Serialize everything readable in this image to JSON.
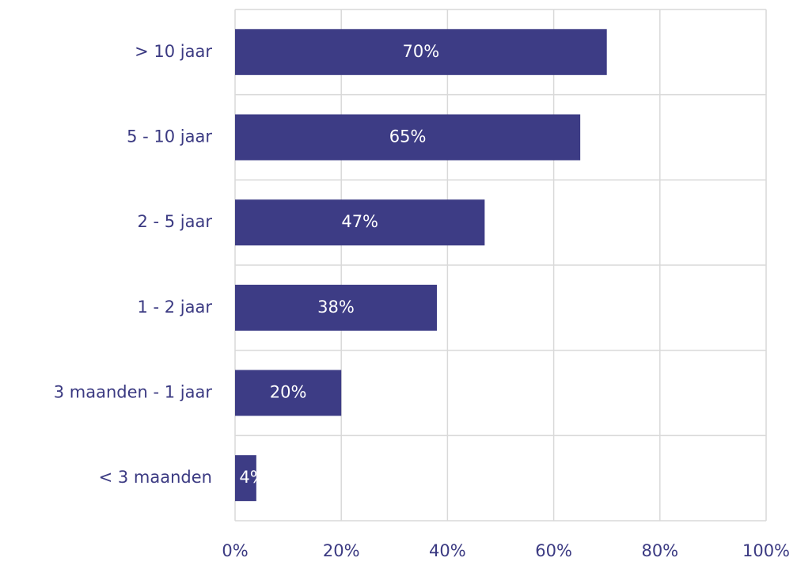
{
  "chart_data": {
    "type": "bar",
    "orientation": "horizontal",
    "categories": [
      "> 10 jaar",
      "5 - 10 jaar",
      "2 - 5 jaar",
      "1 - 2 jaar",
      "3 maanden - 1 jaar",
      "< 3 maanden"
    ],
    "values": [
      70,
      65,
      47,
      38,
      20,
      4
    ],
    "value_labels": [
      "70%",
      "65%",
      "47%",
      "38%",
      "20%",
      "4%"
    ],
    "color": "#3d3c85",
    "xlim": [
      0,
      100
    ],
    "xticks": [
      {
        "value": 0,
        "label": "0%"
      },
      {
        "value": 20,
        "label": "20%"
      },
      {
        "value": 40,
        "label": "40%"
      },
      {
        "value": 60,
        "label": "60%"
      },
      {
        "value": 80,
        "label": "80%"
      },
      {
        "value": 100,
        "label": "100%"
      }
    ],
    "grid": true
  }
}
